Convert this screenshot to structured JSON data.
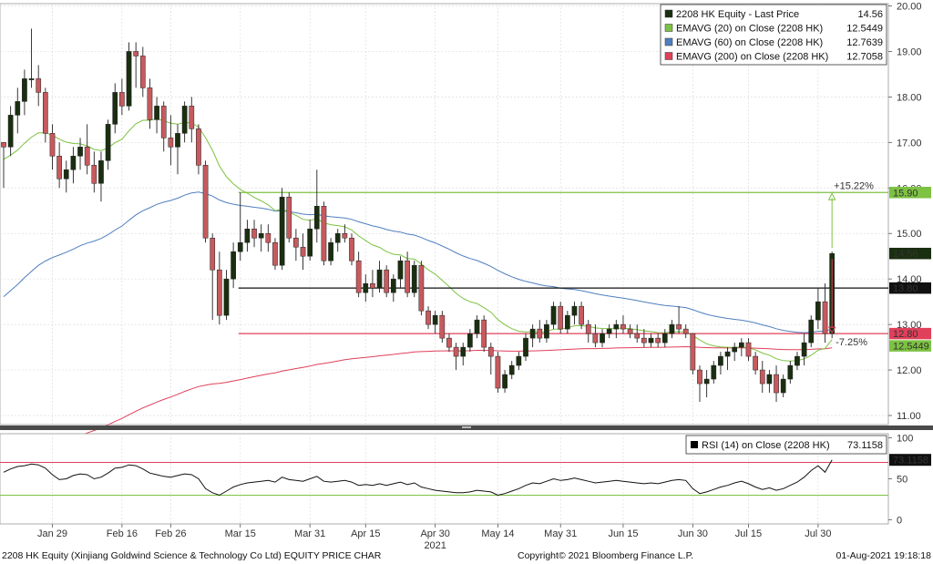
{
  "chart_data": [
    {
      "type": "candlestick",
      "title": "",
      "x_ticks": [
        "Jan 29",
        "Feb 16",
        "Feb 26",
        "Mar 15",
        "Mar 31",
        "Apr 15",
        "Apr 30",
        "May 14",
        "May 31",
        "Jun 15",
        "Jun 30",
        "Jul 15",
        "Jul 30"
      ],
      "x_year": "2021",
      "y_ticks": [
        "11.00",
        "12.00",
        "13.00",
        "14.00",
        "15.00",
        "16.00",
        "17.00",
        "18.00",
        "19.00",
        "20.00"
      ],
      "ylim": [
        10.8,
        20.05
      ],
      "grid": true,
      "legend_position": "top-right",
      "legend": [
        {
          "label": "2208 HK Equity - Last Price",
          "value": "14.56",
          "color": "#1a2e10"
        },
        {
          "label": "EMAVG (20)  on Close (2208 HK)",
          "value": "12.5449",
          "color": "#7dc242"
        },
        {
          "label": "EMAVG (60)  on Close (2208 HK)",
          "value": "12.7639",
          "color": "#4f7fbf"
        },
        {
          "label": "EMAVG (200)  on Close (2208 HK)",
          "value": "12.7058",
          "color": "#e0405a"
        }
      ],
      "price_tags": [
        {
          "value": 15.9,
          "label": "15.90",
          "bg": "#7dc242",
          "fg": "#000000"
        },
        {
          "value": 14.56,
          "label": "14.56",
          "bg": "#1a2e10",
          "fg": "#ffffff"
        },
        {
          "value": 13.8,
          "label": "13.80",
          "bg": "#111111",
          "fg": "#ffffff"
        },
        {
          "value": 12.8,
          "label": "12.80",
          "bg": "#e0405a",
          "fg": "#ffffff"
        },
        {
          "value": 12.5449,
          "label": "12.5449",
          "bg": "#7dc242",
          "fg": "#000000"
        }
      ],
      "annotations": [
        {
          "text": "+15.22%",
          "color": "#7dc242",
          "y": 15.9
        },
        {
          "text": "-7.25%",
          "color": "#e0405a",
          "y": 12.8
        }
      ],
      "horizontal_lines": [
        {
          "value": 15.9,
          "color": "#7dc242"
        },
        {
          "value": 13.8,
          "color": "#111111"
        },
        {
          "value": 12.8,
          "color": "#e0405a"
        }
      ],
      "colors": {
        "up": "#1a2e10",
        "down": "#c75a5e",
        "ema20": "#7dc242",
        "ema60": "#4f7fbf",
        "ema200": "#e0405a"
      },
      "candles": [
        [
          17.0,
          17.0,
          16.0,
          16.9
        ],
        [
          16.9,
          17.8,
          16.7,
          17.6
        ],
        [
          17.6,
          18.2,
          17.2,
          17.9
        ],
        [
          17.9,
          18.6,
          17.6,
          18.4
        ],
        [
          18.4,
          19.5,
          18.2,
          18.4
        ],
        [
          18.4,
          18.7,
          17.8,
          18.1
        ],
        [
          18.1,
          18.2,
          17.0,
          17.2
        ],
        [
          17.2,
          17.4,
          16.4,
          16.7
        ],
        [
          16.7,
          17.0,
          16.0,
          16.2
        ],
        [
          16.2,
          16.6,
          15.9,
          16.4
        ],
        [
          16.4,
          16.9,
          16.1,
          16.7
        ],
        [
          16.7,
          17.1,
          16.4,
          16.9
        ],
        [
          16.9,
          17.4,
          16.3,
          16.5
        ],
        [
          16.5,
          16.8,
          15.9,
          16.1
        ],
        [
          16.1,
          16.8,
          15.7,
          16.6
        ],
        [
          16.6,
          17.5,
          16.4,
          17.4
        ],
        [
          17.4,
          18.3,
          17.2,
          18.1
        ],
        [
          18.1,
          18.4,
          17.6,
          17.8
        ],
        [
          17.8,
          19.2,
          17.7,
          19.0
        ],
        [
          19.0,
          19.2,
          18.2,
          18.9
        ],
        [
          18.9,
          19.1,
          18.0,
          18.2
        ],
        [
          18.2,
          18.4,
          17.3,
          17.5
        ],
        [
          17.5,
          18.0,
          17.2,
          17.8
        ],
        [
          17.8,
          17.9,
          16.8,
          17.1
        ],
        [
          17.1,
          17.6,
          16.5,
          16.9
        ],
        [
          16.9,
          17.4,
          16.3,
          17.2
        ],
        [
          17.2,
          17.9,
          17.0,
          17.8
        ],
        [
          17.8,
          18.0,
          17.0,
          17.3
        ],
        [
          17.3,
          17.4,
          16.3,
          16.5
        ],
        [
          16.5,
          16.6,
          14.8,
          14.9
        ],
        [
          14.9,
          15.0,
          13.1,
          14.2
        ],
        [
          14.2,
          14.6,
          13.0,
          13.2
        ],
        [
          13.2,
          14.2,
          13.1,
          14.0
        ],
        [
          14.0,
          14.8,
          13.8,
          14.6
        ],
        [
          14.6,
          15.9,
          14.4,
          14.8
        ],
        [
          14.8,
          15.3,
          14.6,
          15.1
        ],
        [
          15.1,
          15.3,
          14.7,
          14.9
        ],
        [
          14.9,
          15.2,
          14.6,
          15.0
        ],
        [
          15.0,
          15.2,
          14.6,
          14.8
        ],
        [
          14.8,
          14.9,
          14.2,
          14.3
        ],
        [
          14.3,
          16.0,
          14.2,
          15.8
        ],
        [
          15.8,
          15.9,
          14.8,
          14.9
        ],
        [
          14.9,
          15.1,
          14.4,
          14.7
        ],
        [
          14.7,
          15.0,
          14.2,
          14.5
        ],
        [
          14.5,
          15.3,
          14.4,
          15.1
        ],
        [
          15.1,
          16.4,
          14.8,
          15.6
        ],
        [
          15.6,
          15.7,
          14.3,
          14.4
        ],
        [
          14.4,
          14.9,
          14.3,
          14.8
        ],
        [
          14.8,
          15.1,
          14.6,
          15.0
        ],
        [
          15.0,
          15.2,
          14.8,
          14.9
        ],
        [
          14.9,
          15.0,
          14.3,
          14.4
        ],
        [
          14.4,
          14.6,
          13.6,
          13.7
        ],
        [
          13.7,
          14.1,
          13.5,
          13.9
        ],
        [
          13.9,
          14.2,
          13.6,
          13.8
        ],
        [
          13.8,
          14.4,
          13.7,
          14.2
        ],
        [
          14.2,
          14.3,
          13.6,
          13.7
        ],
        [
          13.7,
          14.1,
          13.5,
          14.0
        ],
        [
          14.0,
          14.5,
          13.8,
          14.4
        ],
        [
          14.4,
          14.6,
          13.6,
          13.7
        ],
        [
          13.7,
          14.4,
          13.6,
          14.3
        ],
        [
          14.3,
          14.4,
          13.2,
          13.3
        ],
        [
          13.3,
          13.4,
          12.9,
          13.0
        ],
        [
          13.0,
          13.3,
          12.8,
          13.2
        ],
        [
          13.2,
          13.3,
          12.6,
          12.7
        ],
        [
          12.7,
          12.8,
          12.4,
          12.5
        ],
        [
          12.5,
          12.6,
          12.0,
          12.3
        ],
        [
          12.3,
          12.6,
          12.1,
          12.5
        ],
        [
          12.5,
          12.9,
          12.4,
          12.8
        ],
        [
          12.8,
          13.2,
          12.7,
          13.1
        ],
        [
          13.1,
          13.2,
          12.4,
          12.5
        ],
        [
          12.5,
          12.6,
          11.9,
          12.3
        ],
        [
          12.3,
          12.4,
          11.5,
          11.6
        ],
        [
          11.6,
          12.0,
          11.5,
          11.9
        ],
        [
          11.9,
          12.2,
          11.8,
          12.1
        ],
        [
          12.1,
          12.4,
          12.0,
          12.3
        ],
        [
          12.3,
          12.8,
          12.2,
          12.7
        ],
        [
          12.7,
          13.0,
          12.5,
          12.9
        ],
        [
          12.9,
          13.1,
          12.6,
          12.7
        ],
        [
          12.7,
          13.1,
          12.6,
          13.0
        ],
        [
          13.0,
          13.5,
          12.9,
          13.4
        ],
        [
          13.4,
          13.5,
          12.8,
          12.9
        ],
        [
          12.9,
          13.3,
          12.8,
          13.2
        ],
        [
          13.2,
          13.5,
          13.0,
          13.4
        ],
        [
          13.4,
          13.5,
          12.9,
          13.0
        ],
        [
          13.0,
          13.1,
          12.6,
          12.8
        ],
        [
          12.8,
          13.0,
          12.5,
          12.6
        ],
        [
          12.6,
          12.9,
          12.5,
          12.8
        ],
        [
          12.8,
          13.0,
          12.7,
          12.9
        ],
        [
          12.9,
          13.1,
          12.7,
          13.0
        ],
        [
          13.0,
          13.2,
          12.8,
          12.9
        ],
        [
          12.9,
          13.0,
          12.7,
          12.8
        ],
        [
          12.8,
          13.0,
          12.6,
          12.7
        ],
        [
          12.7,
          12.9,
          12.5,
          12.6
        ],
        [
          12.6,
          12.8,
          12.5,
          12.7
        ],
        [
          12.7,
          12.8,
          12.5,
          12.6
        ],
        [
          12.6,
          12.9,
          12.5,
          12.8
        ],
        [
          12.8,
          13.1,
          12.7,
          13.0
        ],
        [
          13.0,
          13.4,
          12.8,
          12.9
        ],
        [
          12.9,
          13.0,
          12.7,
          12.8
        ],
        [
          12.8,
          12.8,
          11.9,
          12.0
        ],
        [
          12.0,
          12.1,
          11.3,
          11.7
        ],
        [
          11.7,
          12.0,
          11.4,
          11.8
        ],
        [
          11.8,
          12.2,
          11.7,
          12.1
        ],
        [
          12.1,
          12.4,
          11.9,
          12.3
        ],
        [
          12.3,
          12.5,
          12.0,
          12.4
        ],
        [
          12.4,
          12.6,
          12.2,
          12.5
        ],
        [
          12.5,
          12.7,
          12.3,
          12.6
        ],
        [
          12.6,
          12.7,
          12.2,
          12.3
        ],
        [
          12.3,
          12.4,
          11.9,
          12.0
        ],
        [
          12.0,
          12.2,
          11.5,
          11.7
        ],
        [
          11.7,
          12.0,
          11.5,
          11.9
        ],
        [
          11.9,
          12.1,
          11.3,
          11.5
        ],
        [
          11.5,
          11.9,
          11.4,
          11.8
        ],
        [
          11.8,
          12.2,
          11.7,
          12.1
        ],
        [
          12.1,
          12.4,
          12.0,
          12.3
        ],
        [
          12.3,
          12.8,
          12.1,
          12.6
        ],
        [
          12.6,
          13.2,
          12.5,
          13.1
        ],
        [
          13.1,
          13.8,
          12.9,
          13.5
        ],
        [
          13.5,
          13.9,
          12.6,
          12.8
        ],
        [
          12.8,
          14.6,
          12.7,
          14.56
        ]
      ]
    },
    {
      "type": "line",
      "title": "",
      "x_ticks": [
        "Jan 29",
        "Feb 16",
        "Feb 26",
        "Mar 15",
        "Mar 31",
        "Apr 15",
        "Apr 30",
        "May 14",
        "May 31",
        "Jun 15",
        "Jun 30",
        "Jul 15",
        "Jul 30"
      ],
      "x_year": "2021",
      "y_ticks": [
        "0",
        "50",
        "100"
      ],
      "ylim": [
        -5,
        105
      ],
      "grid": true,
      "legend_position": "top-right",
      "legend": [
        {
          "label": "RSI (14)  on Close (2208 HK)",
          "value": "73.1158",
          "color": "#000000"
        }
      ],
      "reference_lines": [
        {
          "value": 70,
          "color": "#e0405a"
        },
        {
          "value": 30,
          "color": "#7dc242"
        }
      ],
      "price_tag": {
        "value": 73.1158,
        "label": "73.1158",
        "bg": "#111111",
        "fg": "#ffffff"
      },
      "series": [
        {
          "name": "RSI (14)",
          "values": [
            58,
            62,
            65,
            66,
            68,
            67,
            63,
            55,
            49,
            50,
            54,
            56,
            55,
            50,
            52,
            57,
            63,
            64,
            67,
            66,
            62,
            57,
            55,
            53,
            52,
            54,
            56,
            55,
            50,
            38,
            33,
            30,
            35,
            40,
            43,
            45,
            46,
            47,
            48,
            46,
            52,
            49,
            48,
            47,
            50,
            53,
            47,
            46,
            47,
            48,
            46,
            42,
            43,
            42,
            44,
            42,
            44,
            46,
            43,
            45,
            40,
            38,
            36,
            35,
            34,
            33,
            33,
            34,
            36,
            35,
            34,
            30,
            32,
            35,
            38,
            42,
            45,
            44,
            47,
            50,
            48,
            49,
            51,
            49,
            47,
            45,
            46,
            47,
            48,
            47,
            46,
            45,
            44,
            45,
            44,
            46,
            48,
            49,
            48,
            38,
            32,
            34,
            37,
            40,
            42,
            45,
            47,
            44,
            40,
            37,
            39,
            36,
            38,
            42,
            46,
            52,
            60,
            66,
            58,
            73.1158
          ]
        }
      ]
    }
  ],
  "footer": {
    "left": "2208 HK Equity (Xinjiang Goldwind Science & Technology Co Ltd) EQUITY PRICE CHAR",
    "middle": "Copyright© 2021 Bloomberg Finance L.P.",
    "right": "01-Aug-2021 19:18:18"
  }
}
